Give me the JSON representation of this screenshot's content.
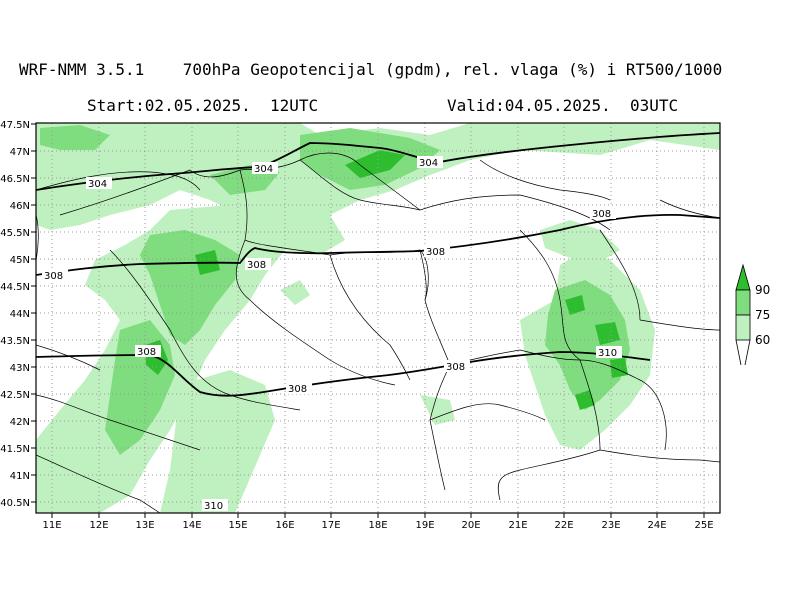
{
  "header": {
    "line1": "WRF-NMM 3.5.1    700hPa Geopotencijal (gpdm), rel. vlaga (%) i RT500/1000",
    "start": "Start:02.05.2025.  12UTC",
    "valid": "Valid:04.05.2025.  03UTC"
  },
  "axes": {
    "lat_labels": [
      "47.5N",
      "47N",
      "46.5N",
      "46N",
      "45.5N",
      "45N",
      "44.5N",
      "44N",
      "43.5N",
      "43N",
      "42.5N",
      "42N",
      "41.5N",
      "41N",
      "40.5N"
    ],
    "lon_labels": [
      "11E",
      "12E",
      "13E",
      "14E",
      "15E",
      "16E",
      "17E",
      "18E",
      "19E",
      "20E",
      "21E",
      "22E",
      "23E",
      "24E",
      "25E"
    ]
  },
  "contours": {
    "labels": [
      "304",
      "304",
      "304",
      "308",
      "308",
      "308",
      "308",
      "308",
      "308",
      "308",
      "310"
    ]
  },
  "legend": {
    "levels": [
      "90",
      "75",
      "60"
    ],
    "colors": {
      "light": "#bff0bf",
      "mid": "#7fdc7f",
      "dark": "#2ebd2e"
    }
  }
}
